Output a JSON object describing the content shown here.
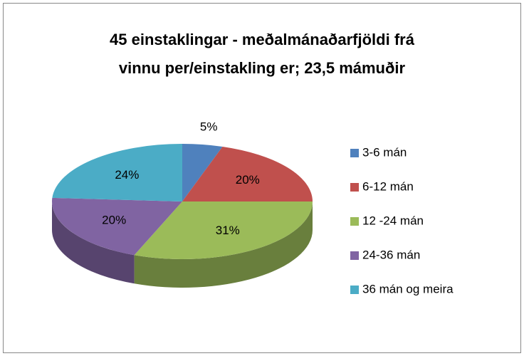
{
  "chart_data": {
    "type": "pie3d",
    "title": [
      "45 einstaklingar  -  meðalmánaðarfjöldi frá",
      "vinnu per/einstakling er; 23,5 mámuðir"
    ],
    "categories": [
      "3-6 mán",
      "6-12 mán",
      "12 -24 mán",
      "24-36 mán",
      "36 mán og meira"
    ],
    "values": [
      5,
      20,
      31,
      20,
      24
    ],
    "value_labels": [
      "5%",
      "20%",
      "31%",
      "20%",
      "24%"
    ],
    "colors": [
      "#4f81bd",
      "#c0504d",
      "#9bbb59",
      "#8064a2",
      "#4bacc6"
    ],
    "legend": "right"
  }
}
